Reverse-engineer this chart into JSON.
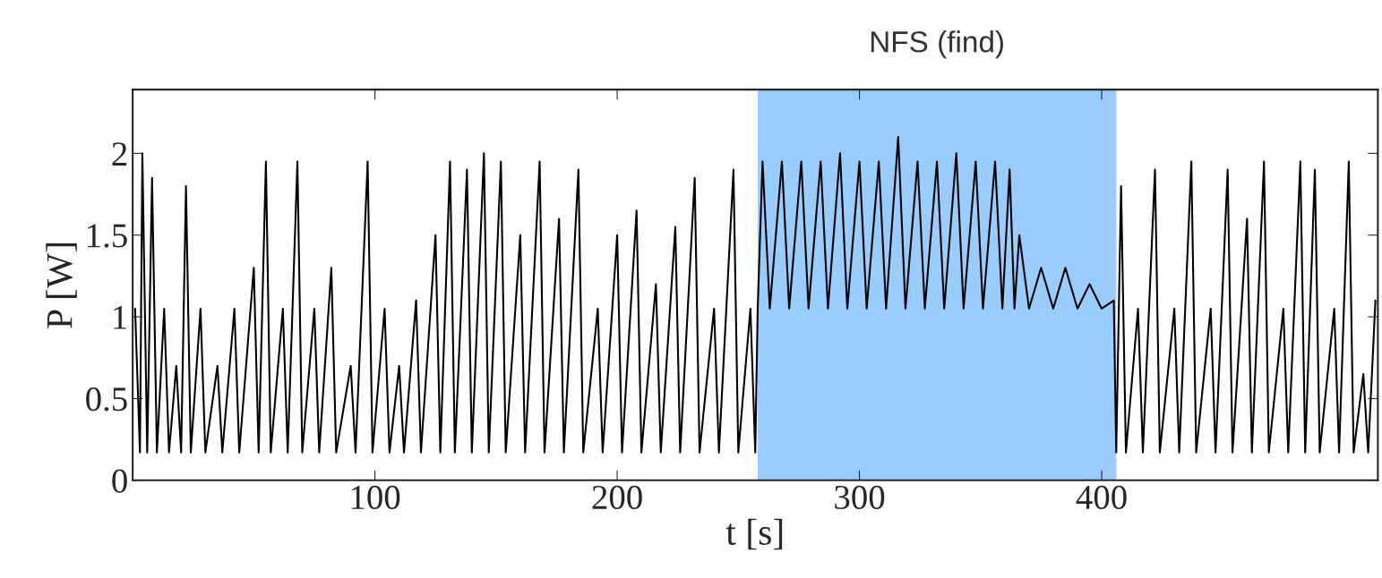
{
  "chart_data": {
    "type": "line",
    "xlabel": "t [s]",
    "ylabel": "P [W]",
    "xlim": [
      0,
      514
    ],
    "ylim": [
      0,
      2.39
    ],
    "xticks": [
      100,
      200,
      300,
      400
    ],
    "yticks": [
      0,
      0.5,
      1,
      1.5,
      2
    ],
    "grid": false,
    "legend": false,
    "bands": [
      {
        "axis": "x",
        "from": 258,
        "to": 406,
        "label": "NFS (find)",
        "color": "#99ccff"
      }
    ],
    "series": [
      {
        "color": "#000000",
        "x": [
          1,
          3,
          4,
          6,
          8,
          10,
          13,
          15,
          18,
          20,
          22,
          24,
          28,
          30,
          35,
          37,
          42,
          44,
          50,
          52,
          55,
          57,
          62,
          64,
          68,
          70,
          75,
          77,
          82,
          84,
          90,
          92,
          97,
          99,
          104,
          106,
          110,
          112,
          117,
          119,
          125,
          127,
          131,
          133,
          138,
          140,
          145,
          147,
          152,
          154,
          160,
          162,
          168,
          170,
          176,
          178,
          184,
          186,
          192,
          194,
          200,
          202,
          208,
          210,
          216,
          218,
          224,
          226,
          232,
          234,
          240,
          242,
          248,
          250,
          255,
          257,
          258,
          260,
          263,
          268,
          271,
          276,
          279,
          284,
          287,
          292,
          295,
          300,
          303,
          308,
          311,
          316,
          319,
          324,
          327,
          332,
          335,
          340,
          343,
          348,
          351,
          356,
          359,
          362,
          364,
          366,
          370,
          375,
          380,
          385,
          390,
          395,
          400,
          405,
          406,
          408,
          410,
          415,
          417,
          422,
          424,
          430,
          432,
          437,
          439,
          445,
          447,
          452,
          454,
          460,
          462,
          467,
          469,
          475,
          477,
          482,
          484,
          488,
          490,
          496,
          498,
          502,
          504,
          508,
          510,
          513
        ],
        "values": [
          1.05,
          0.17,
          2.0,
          0.17,
          1.85,
          0.17,
          1.05,
          0.17,
          0.7,
          0.17,
          1.8,
          0.17,
          1.05,
          0.17,
          0.7,
          0.17,
          1.05,
          0.17,
          1.3,
          0.17,
          1.95,
          0.17,
          1.05,
          0.17,
          1.95,
          0.17,
          1.05,
          0.17,
          1.3,
          0.17,
          0.7,
          0.17,
          1.95,
          0.17,
          1.05,
          0.17,
          0.7,
          0.17,
          1.1,
          0.17,
          1.5,
          0.17,
          1.95,
          0.17,
          1.9,
          0.17,
          2.0,
          0.17,
          1.95,
          0.17,
          1.5,
          0.17,
          1.95,
          0.17,
          1.6,
          0.17,
          1.9,
          0.17,
          1.05,
          0.17,
          1.5,
          0.17,
          1.65,
          0.17,
          1.2,
          0.17,
          1.55,
          0.17,
          1.85,
          0.17,
          1.05,
          0.17,
          1.9,
          0.17,
          1.05,
          0.17,
          1.05,
          1.95,
          1.05,
          1.95,
          1.05,
          1.95,
          1.05,
          1.95,
          1.05,
          2.0,
          1.05,
          1.95,
          1.05,
          1.95,
          1.05,
          2.1,
          1.05,
          1.95,
          1.05,
          1.95,
          1.05,
          2.0,
          1.05,
          1.95,
          1.05,
          1.95,
          1.05,
          1.9,
          1.05,
          1.5,
          1.05,
          1.3,
          1.05,
          1.3,
          1.05,
          1.2,
          1.05,
          1.1,
          0.17,
          1.8,
          0.17,
          1.05,
          0.17,
          1.9,
          0.17,
          1.05,
          0.17,
          1.95,
          0.17,
          1.05,
          0.17,
          1.9,
          0.17,
          1.6,
          0.17,
          1.95,
          0.17,
          1.05,
          0.17,
          1.95,
          0.17,
          1.9,
          0.17,
          1.05,
          0.17,
          1.95,
          0.17,
          0.65,
          0.17,
          1.1
        ]
      }
    ]
  }
}
